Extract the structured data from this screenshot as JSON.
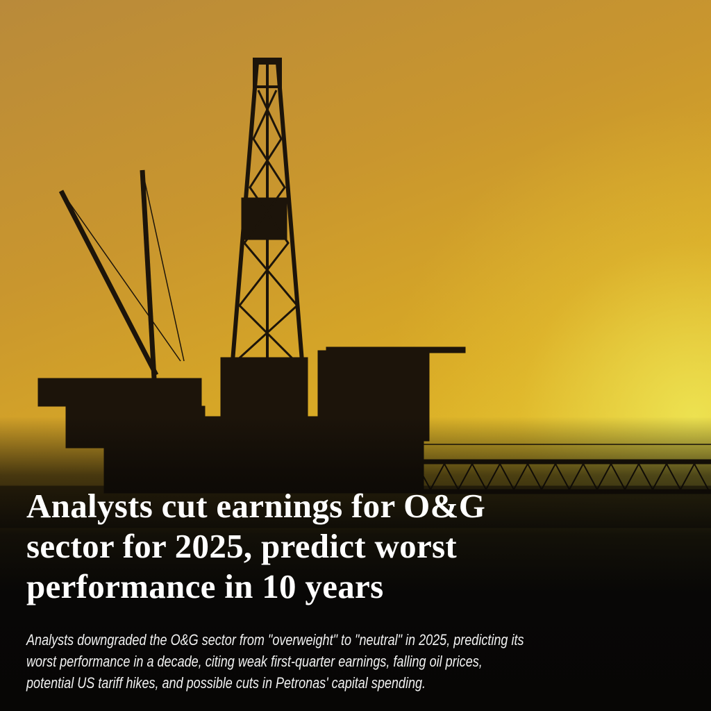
{
  "article": {
    "headline_lines": [
      "Analysts cut earnings for O&G",
      "sector for 2025, predict worst",
      "performance in 10 years"
    ],
    "summary_lines": [
      "Analysts downgraded the O&G sector from \"overweight\" to \"neutral\" in 2025, predicting its",
      "worst performance in a decade, citing weak first-quarter earnings, falling oil prices,",
      "potential US tariff hikes, and possible cuts in Petronas' capital spending."
    ]
  },
  "image": {
    "subject": "offshore-oil-rig-silhouette",
    "colors": {
      "sky_top": "#b98a3a",
      "sky_bottom": "#e9dc4a",
      "silhouette": "#1c140a",
      "text": "#ffffff"
    }
  }
}
